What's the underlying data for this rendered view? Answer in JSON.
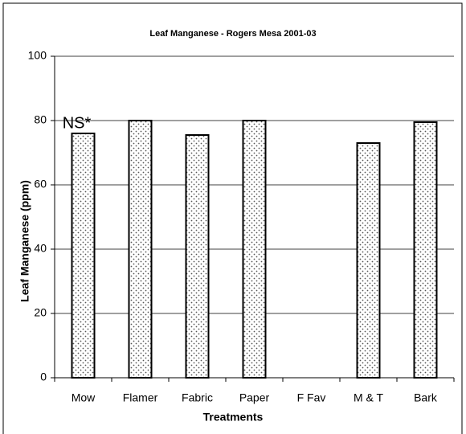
{
  "chart_data": {
    "type": "bar",
    "title": "Leaf Manganese - Rogers Mesa 2001-03",
    "xlabel": "Treatments",
    "ylabel": "Leaf Manganese (ppm)",
    "categories": [
      "Mow",
      "Flamer",
      "Fabric",
      "Paper",
      "F Fav",
      "M & T",
      "Bark"
    ],
    "values": [
      76,
      80,
      75.5,
      80,
      null,
      73,
      79.5
    ],
    "annotation": "NS*",
    "ylim": [
      0,
      100
    ],
    "yticks": [
      0,
      20,
      40,
      60,
      80,
      100
    ],
    "grid": true
  }
}
